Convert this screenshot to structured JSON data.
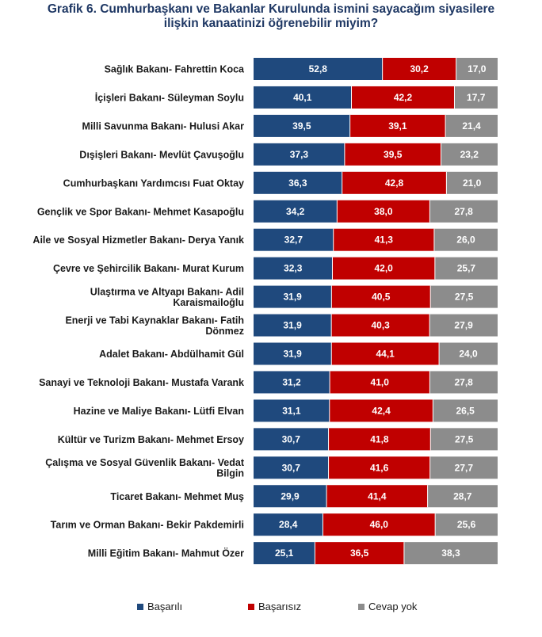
{
  "title": {
    "line1": "Grafik 6. Cumhurbaşkanı ve Bakanlar Kurulunda ismini sayacağım siyasilere",
    "line2": "ilişkin kanaatinizi öğrenebilir miyim?"
  },
  "colors": {
    "basarili": "#1f497d",
    "basarisiz": "#c00000",
    "cevap_yok": "#8c8c8c"
  },
  "chart_data": {
    "type": "bar",
    "orientation": "horizontal",
    "stacked": "100%",
    "categories": [
      [
        "Sağlık Bakanı- Fahrettin Koca"
      ],
      [
        "İçişleri Bakanı- Süleyman Soylu"
      ],
      [
        "Milli Savunma Bakanı- Hulusi Akar"
      ],
      [
        "Dışişleri Bakanı- Mevlüt Çavuşoğlu"
      ],
      [
        "Cumhurbaşkanı Yardımcısı Fuat Oktay"
      ],
      [
        "Gençlik ve Spor Bakanı- Mehmet Kasapoğlu"
      ],
      [
        "Aile ve Sosyal Hizmetler Bakanı- Derya Yanık"
      ],
      [
        "Çevre ve Şehircilik Bakanı- Murat Kurum"
      ],
      [
        "Ulaştırma ve Altyapı Bakanı- Adil",
        "Karaismailoğlu"
      ],
      [
        "Enerji ve Tabi Kaynaklar Bakanı- Fatih",
        "Dönmez"
      ],
      [
        "Adalet Bakanı- Abdülhamit Gül"
      ],
      [
        "Sanayi ve Teknoloji Bakanı- Mustafa Varank"
      ],
      [
        "Hazine ve Maliye Bakanı- Lütfi Elvan"
      ],
      [
        "Kültür ve Turizm Bakanı- Mehmet Ersoy"
      ],
      [
        "Çalışma ve Sosyal Güvenlik Bakanı- Vedat",
        "Bilgin"
      ],
      [
        "Ticaret Bakanı- Mehmet Muş"
      ],
      [
        "Tarım ve Orman Bakanı- Bekir Pakdemirli"
      ],
      [
        "Milli Eğitim Bakanı- Mahmut Özer"
      ]
    ],
    "series": [
      {
        "name": "Başarılı",
        "color": "#1f497d",
        "values": [
          "52,8",
          "40,1",
          "39,5",
          "37,3",
          "36,3",
          "34,2",
          "32,7",
          "32,3",
          "31,9",
          "31,9",
          "31,9",
          "31,2",
          "31,1",
          "30,7",
          "30,7",
          "29,9",
          "28,4",
          "25,1"
        ]
      },
      {
        "name": "Başarısız",
        "color": "#c00000",
        "values": [
          "30,2",
          "42,2",
          "39,1",
          "39,5",
          "42,8",
          "38,0",
          "41,3",
          "42,0",
          "40,5",
          "40,3",
          "44,1",
          "41,0",
          "42,4",
          "41,8",
          "41,6",
          "41,4",
          "46,0",
          "36,5"
        ]
      },
      {
        "name": "Cevap yok",
        "color": "#8c8c8c",
        "values": [
          "17,0",
          "17,7",
          "21,4",
          "23,2",
          "21,0",
          "27,8",
          "26,0",
          "25,7",
          "27,5",
          "27,9",
          "24,0",
          "27,8",
          "26,5",
          "27,5",
          "27,7",
          "28,7",
          "25,6",
          "38,3"
        ]
      }
    ],
    "legend_position": "bottom",
    "grid": false
  }
}
